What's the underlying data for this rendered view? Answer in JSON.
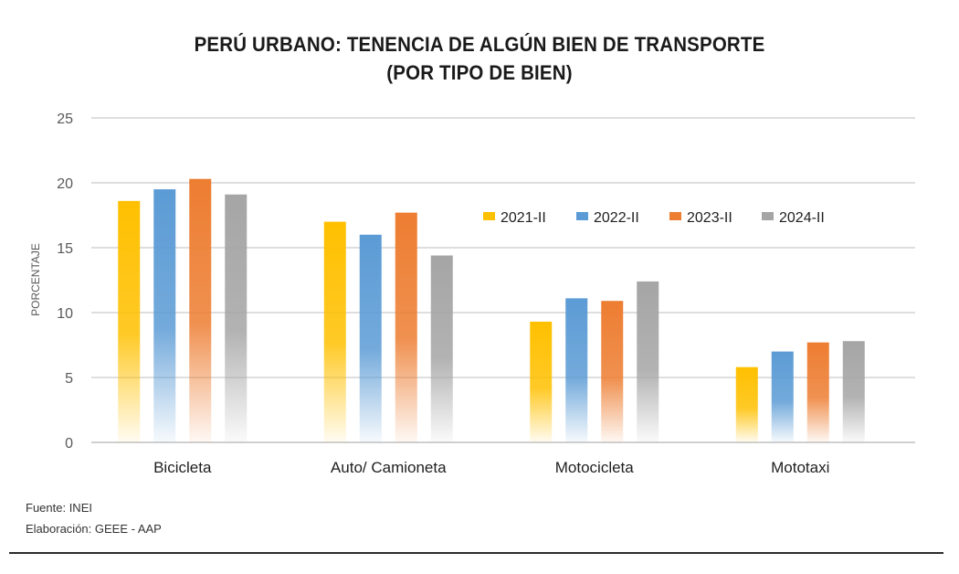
{
  "chart_data": {
    "type": "bar",
    "title": [
      "PERÚ URBANO: TENENCIA DE ALGÚN BIEN DE TRANSPORTE",
      "(POR TIPO DE BIEN)"
    ],
    "xlabel": "",
    "ylabel": "PORCENTAJE",
    "ylim": [
      0,
      25
    ],
    "yticks": [
      0,
      5,
      10,
      15,
      20,
      25
    ],
    "grid": true,
    "legend_position": "upper-right-inside",
    "categories": [
      "Bicicleta",
      "Auto/ Camioneta",
      "Motocicleta",
      "Mototaxi"
    ],
    "series": [
      {
        "name": "2021-II",
        "color": "#FFC000",
        "values": [
          18.6,
          17.0,
          9.3,
          5.8
        ]
      },
      {
        "name": "2022-II",
        "color": "#5B9BD5",
        "values": [
          19.5,
          16.0,
          11.1,
          7.0
        ]
      },
      {
        "name": "2023-II",
        "color": "#ED7D31",
        "values": [
          20.3,
          17.7,
          10.9,
          7.7
        ]
      },
      {
        "name": "2024-II",
        "color": "#A5A5A5",
        "values": [
          19.1,
          14.4,
          12.4,
          7.8
        ]
      }
    ]
  },
  "footer": {
    "source": "Fuente: INEI",
    "credit": "Elaboración: GEEE - AAP"
  }
}
